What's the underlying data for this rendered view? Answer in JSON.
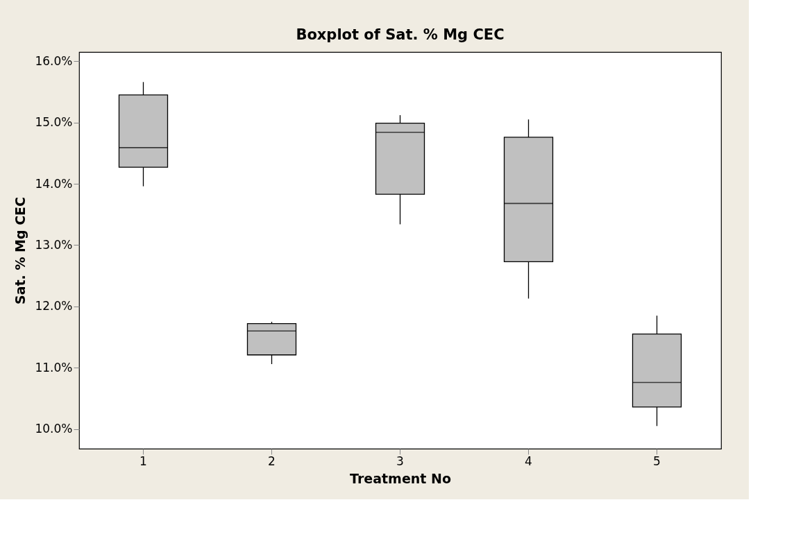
{
  "chart_data": {
    "type": "box",
    "title": "Boxplot of Sat. % Mg CEC",
    "xlabel": "Treatment No",
    "ylabel": "Sat. % Mg CEC",
    "categories": [
      "1",
      "2",
      "3",
      "4",
      "5"
    ],
    "series": [
      {
        "color": "#c0c0c0",
        "boxes": [
          {
            "low": 13.96,
            "q1": 14.27,
            "median": 14.59,
            "q3": 15.45,
            "high": 15.66
          },
          {
            "low": 11.06,
            "q1": 11.21,
            "median": 11.6,
            "q3": 11.72,
            "high": 11.75
          },
          {
            "low": 13.34,
            "q1": 13.83,
            "median": 14.84,
            "q3": 14.99,
            "high": 15.12
          },
          {
            "low": 12.13,
            "q1": 12.73,
            "median": 13.68,
            "q3": 14.76,
            "high": 15.05
          },
          {
            "low": 10.05,
            "q1": 10.36,
            "median": 10.76,
            "q3": 11.55,
            "high": 11.85
          }
        ]
      }
    ],
    "ylim": [
      9.68,
      16.15
    ],
    "yticks": [
      {
        "value": 10,
        "label": "10.0%"
      },
      {
        "value": 11,
        "label": "11.0%"
      },
      {
        "value": 12,
        "label": "12.0%"
      },
      {
        "value": 13,
        "label": "13.0%"
      },
      {
        "value": 14,
        "label": "14.0%"
      },
      {
        "value": 15,
        "label": "15.0%"
      },
      {
        "value": 16,
        "label": "16.0%"
      }
    ]
  }
}
